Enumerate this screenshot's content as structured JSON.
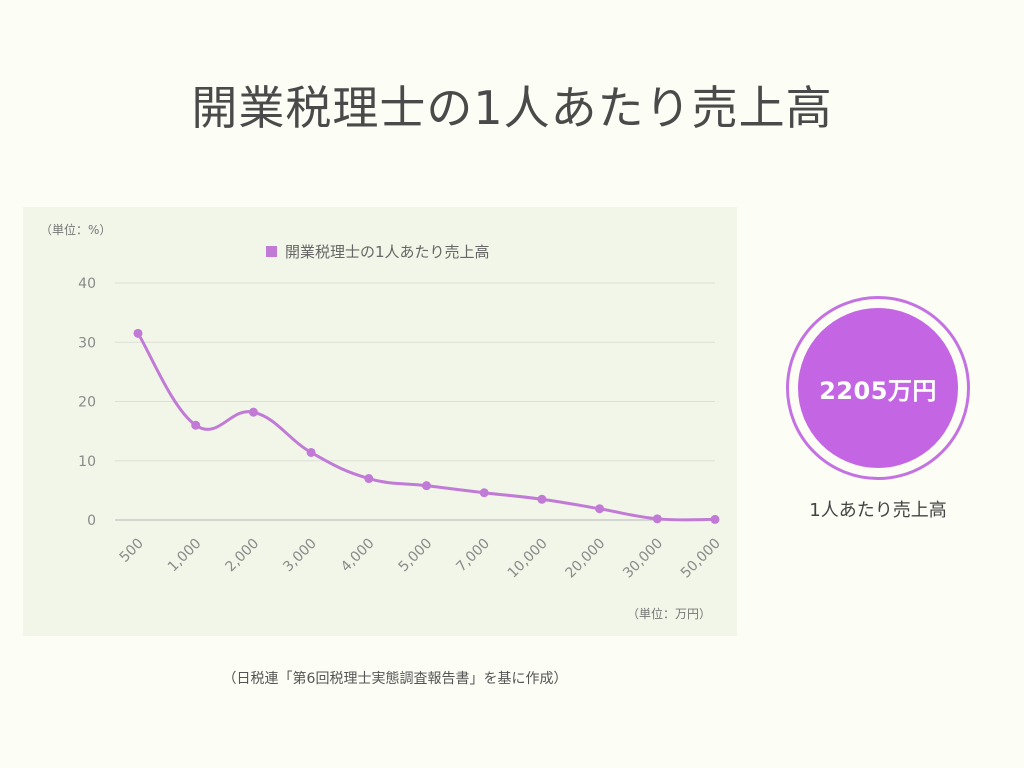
{
  "title": "開業税理士の1人あたり売上高",
  "chart_data": {
    "type": "line",
    "y_unit_label": "（単位：%）",
    "x_unit_label": "（単位：万円）",
    "categories": [
      "500",
      "1,000",
      "2,000",
      "3,000",
      "4,000",
      "5,000",
      "7,000",
      "10,000",
      "20,000",
      "30,000",
      "50,000"
    ],
    "series": [
      {
        "name": "開業税理士の1人あたり売上高",
        "values": [
          31.5,
          16.0,
          18.2,
          11.4,
          7.0,
          5.8,
          4.6,
          3.5,
          1.9,
          0.2,
          0.1
        ],
        "color": "#c17bd6"
      }
    ],
    "y_ticks": [
      "0",
      "10",
      "20",
      "30",
      "40"
    ],
    "ylim": [
      0,
      40
    ],
    "grid": true,
    "legend_position": "top-center"
  },
  "badge": {
    "value": "2205万円",
    "label": "1人あたり売上高",
    "color": "#c466e4"
  },
  "source_note": "（日税連「第6回税理士実態調査報告書」を基に作成）"
}
